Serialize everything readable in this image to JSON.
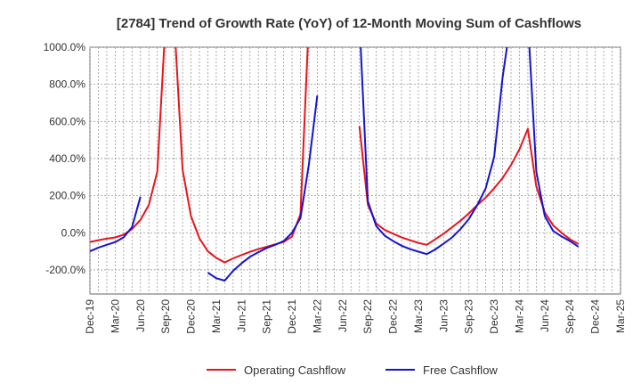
{
  "chart_data": {
    "type": "line",
    "title": "[2784]  Trend of Growth Rate (YoY) of 12-Month Moving Sum of Cashflows",
    "xlabel": "",
    "ylabel": "",
    "ylim": [
      -330,
      1000
    ],
    "y_ticks": [
      1000,
      800,
      600,
      400,
      200,
      0,
      -200
    ],
    "y_tick_labels": [
      "1000.0%",
      "800.0%",
      "600.0%",
      "400.0%",
      "200.0%",
      "0.0%",
      "-200.0%"
    ],
    "x_tick_labels": [
      "Dec-19",
      "Mar-20",
      "Jun-20",
      "Sep-20",
      "Dec-20",
      "Mar-21",
      "Jun-21",
      "Sep-21",
      "Dec-21",
      "Mar-22",
      "Jun-22",
      "Sep-22",
      "Dec-22",
      "Mar-23",
      "Jun-23",
      "Sep-23",
      "Dec-23",
      "Mar-24",
      "Jun-24",
      "Sep-24",
      "Dec-24",
      "Mar-25"
    ],
    "grid": true,
    "legend_position": "bottom",
    "series": [
      {
        "name": "Operating Cashflow",
        "color": "#e8141b",
        "points": [
          [
            "2019-12",
            -50
          ],
          [
            "2020-01",
            -40
          ],
          [
            "2020-02",
            -32
          ],
          [
            "2020-03",
            -25
          ],
          [
            "2020-04",
            -10
          ],
          [
            "2020-05",
            20
          ],
          [
            "2020-06",
            70
          ],
          [
            "2020-07",
            150
          ],
          [
            "2020-08",
            330
          ],
          [
            "2020-09",
            1150
          ],
          [
            "2020-10",
            1150
          ],
          [
            "2020-11",
            340
          ],
          [
            "2020-12",
            90
          ],
          [
            "2021-01",
            -30
          ],
          [
            "2021-02",
            -100
          ],
          [
            "2021-03",
            -135
          ],
          [
            "2021-04",
            -160
          ],
          [
            "2021-05",
            -138
          ],
          [
            "2021-06",
            -120
          ],
          [
            "2021-07",
            -103
          ],
          [
            "2021-08",
            -88
          ],
          [
            "2021-09",
            -75
          ],
          [
            "2021-10",
            -62
          ],
          [
            "2021-11",
            -50
          ],
          [
            "2021-12",
            -20
          ],
          [
            "2022-01",
            100
          ],
          [
            "2022-02",
            1150
          ],
          null,
          [
            "2022-08",
            575
          ],
          [
            "2022-09",
            150
          ],
          [
            "2022-10",
            50
          ],
          [
            "2022-11",
            15
          ],
          [
            "2022-12",
            -5
          ],
          [
            "2023-01",
            -25
          ],
          [
            "2023-02",
            -40
          ],
          [
            "2023-03",
            -55
          ],
          [
            "2023-04",
            -65
          ],
          [
            "2023-05",
            -35
          ],
          [
            "2023-06",
            -5
          ],
          [
            "2023-07",
            30
          ],
          [
            "2023-08",
            65
          ],
          [
            "2023-09",
            105
          ],
          [
            "2023-10",
            150
          ],
          [
            "2023-11",
            190
          ],
          [
            "2023-12",
            240
          ],
          [
            "2024-01",
            295
          ],
          [
            "2024-02",
            365
          ],
          [
            "2024-03",
            450
          ],
          [
            "2024-04",
            560
          ],
          [
            "2024-05",
            250
          ],
          [
            "2024-06",
            110
          ],
          [
            "2024-07",
            40
          ],
          [
            "2024-08",
            0
          ],
          [
            "2024-09",
            -35
          ],
          [
            "2024-10",
            -60
          ]
        ]
      },
      {
        "name": "Free Cashflow",
        "color": "#1414d2",
        "points": [
          [
            "2019-12",
            -100
          ],
          [
            "2020-01",
            -80
          ],
          [
            "2020-02",
            -65
          ],
          [
            "2020-03",
            -50
          ],
          [
            "2020-04",
            -25
          ],
          [
            "2020-05",
            30
          ],
          [
            "2020-06",
            195
          ],
          null,
          [
            "2021-02",
            -215
          ],
          [
            "2021-03",
            -245
          ],
          [
            "2021-04",
            -258
          ],
          [
            "2021-05",
            -205
          ],
          [
            "2021-06",
            -165
          ],
          [
            "2021-07",
            -130
          ],
          [
            "2021-08",
            -105
          ],
          [
            "2021-09",
            -82
          ],
          [
            "2021-10",
            -65
          ],
          [
            "2021-11",
            -45
          ],
          [
            "2021-12",
            0
          ],
          [
            "2022-01",
            80
          ],
          [
            "2022-02",
            370
          ],
          [
            "2022-03",
            740
          ],
          null,
          [
            "2022-08",
            1150
          ],
          [
            "2022-09",
            170
          ],
          [
            "2022-10",
            35
          ],
          [
            "2022-11",
            -15
          ],
          [
            "2022-12",
            -45
          ],
          [
            "2023-01",
            -70
          ],
          [
            "2023-02",
            -88
          ],
          [
            "2023-03",
            -102
          ],
          [
            "2023-04",
            -115
          ],
          [
            "2023-05",
            -90
          ],
          [
            "2023-06",
            -58
          ],
          [
            "2023-07",
            -25
          ],
          [
            "2023-08",
            20
          ],
          [
            "2023-09",
            75
          ],
          [
            "2023-10",
            150
          ],
          [
            "2023-11",
            240
          ],
          [
            "2023-12",
            410
          ],
          [
            "2024-01",
            840
          ],
          [
            "2024-02",
            1150
          ],
          [
            "2024-03",
            1150
          ],
          [
            "2024-04",
            1150
          ],
          [
            "2024-05",
            330
          ],
          [
            "2024-06",
            90
          ],
          [
            "2024-07",
            10
          ],
          [
            "2024-08",
            -20
          ],
          [
            "2024-09",
            -45
          ],
          [
            "2024-10",
            -75
          ]
        ]
      }
    ]
  }
}
